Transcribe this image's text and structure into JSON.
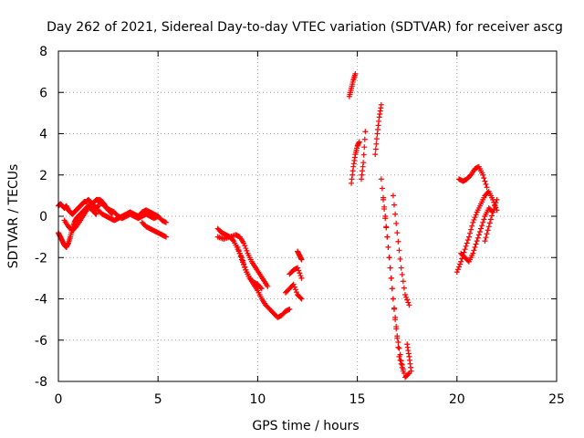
{
  "chart_data": {
    "type": "scatter",
    "title": "Day 262 of 2021, Sidereal Day-to-day VTEC variation (SDTVAR) for receiver ascg",
    "xlabel": "GPS time / hours",
    "ylabel": "SDTVAR / TECUs",
    "xlim": [
      0,
      25
    ],
    "ylim": [
      -8,
      8
    ],
    "xticks": [
      0,
      5,
      10,
      15,
      20,
      25
    ],
    "yticks": [
      -8,
      -6,
      -4,
      -2,
      0,
      2,
      4,
      6,
      8
    ],
    "xtick_labels": [
      "0",
      "5",
      "10",
      "15",
      "20",
      "25"
    ],
    "ytick_labels": [
      "-8",
      "-6",
      "-4",
      "-2",
      "0",
      "2",
      "4",
      "6",
      "8"
    ],
    "grid": true,
    "marker": "+",
    "marker_color": "#ff0000",
    "series": [
      {
        "name": "seg1",
        "x": [
          0.0,
          0.1,
          0.2,
          0.3,
          0.4,
          0.5,
          0.6,
          0.7,
          0.8,
          0.9,
          1.0,
          1.1,
          1.2,
          1.3,
          1.4,
          1.5,
          1.6,
          1.7,
          1.8,
          1.9,
          2.0
        ],
        "y": [
          0.5,
          0.6,
          0.5,
          0.4,
          0.5,
          0.3,
          0.2,
          0.1,
          0.2,
          0.3,
          0.4,
          0.5,
          0.6,
          0.7,
          0.7,
          0.8,
          0.7,
          0.6,
          0.5,
          0.4,
          0.5
        ]
      },
      {
        "name": "seg2",
        "x": [
          0.0,
          0.1,
          0.2,
          0.3,
          0.4,
          0.5,
          0.6,
          0.7,
          0.8,
          0.9,
          1.0,
          1.1,
          1.2,
          1.3,
          1.4,
          1.5,
          1.6,
          1.7,
          1.8,
          1.9
        ],
        "y": [
          -0.8,
          -1.0,
          -1.2,
          -1.4,
          -1.5,
          -1.3,
          -1.0,
          -0.6,
          -0.3,
          -0.1,
          0.0,
          0.1,
          0.2,
          0.3,
          0.4,
          0.5,
          0.4,
          0.3,
          0.2,
          0.1
        ]
      },
      {
        "name": "seg3",
        "x": [
          0.3,
          0.5,
          0.7,
          0.9,
          1.1,
          1.3,
          1.5,
          1.7,
          1.9,
          2.1,
          2.3,
          2.5,
          2.7
        ],
        "y": [
          -0.2,
          -0.5,
          -0.7,
          -0.5,
          -0.2,
          0.1,
          0.4,
          0.6,
          0.8,
          0.8,
          0.6,
          0.3,
          0.1
        ]
      },
      {
        "name": "seg4",
        "x": [
          2.0,
          2.2,
          2.4,
          2.6,
          2.8,
          3.0,
          3.2,
          3.4,
          3.6,
          3.8,
          4.0,
          4.2,
          4.4,
          4.6,
          4.8,
          5.0,
          5.2,
          5.4
        ],
        "y": [
          0.7,
          0.6,
          0.4,
          0.3,
          0.2,
          0.0,
          -0.1,
          0.0,
          0.1,
          0.0,
          -0.1,
          0.0,
          0.1,
          0.0,
          -0.1,
          0.0,
          -0.2,
          -0.3
        ]
      },
      {
        "name": "seg5",
        "x": [
          2.0,
          2.2,
          2.4,
          2.6,
          2.8,
          3.0,
          3.2,
          3.4,
          3.6,
          3.8,
          4.0,
          4.2,
          4.4,
          4.6,
          4.8,
          5.0
        ],
        "y": [
          0.3,
          0.1,
          0.0,
          -0.1,
          -0.2,
          -0.1,
          0.0,
          0.1,
          0.2,
          0.1,
          0.0,
          0.2,
          0.3,
          0.2,
          0.1,
          0.0
        ]
      },
      {
        "name": "seg6",
        "x": [
          4.2,
          4.4,
          4.6,
          4.8,
          5.0,
          5.2,
          5.4
        ],
        "y": [
          -0.3,
          -0.5,
          -0.6,
          -0.7,
          -0.8,
          -0.9,
          -1.0
        ]
      },
      {
        "name": "seg7",
        "x": [
          8.0,
          8.2,
          8.4,
          8.6,
          8.8,
          9.0,
          9.2,
          9.4,
          9.6,
          9.8,
          10.0,
          10.2,
          10.4,
          10.6,
          10.8,
          11.0,
          11.2,
          11.4,
          11.6
        ],
        "y": [
          -0.6,
          -0.8,
          -0.9,
          -1.0,
          -1.2,
          -1.6,
          -2.0,
          -2.6,
          -3.0,
          -3.3,
          -3.6,
          -4.0,
          -4.3,
          -4.5,
          -4.7,
          -4.9,
          -4.8,
          -4.6,
          -4.5
        ]
      },
      {
        "name": "seg8",
        "x": [
          8.0,
          8.3,
          8.6,
          8.9,
          9.1,
          9.3,
          9.5,
          9.7,
          9.9,
          10.1,
          10.3,
          10.5
        ],
        "y": [
          -1.0,
          -1.1,
          -1.0,
          -0.9,
          -1.0,
          -1.3,
          -1.8,
          -2.2,
          -2.5,
          -2.8,
          -3.1,
          -3.4
        ]
      },
      {
        "name": "seg9",
        "x": [
          9.0,
          9.2,
          9.4,
          9.6,
          9.8,
          10.0,
          10.2
        ],
        "y": [
          -1.5,
          -2.1,
          -2.6,
          -3.0,
          -3.2,
          -3.3,
          -3.5
        ]
      },
      {
        "name": "seg10",
        "x": [
          11.4,
          11.6,
          11.8,
          12.0,
          12.2
        ],
        "y": [
          -3.7,
          -3.5,
          -3.3,
          -3.8,
          -4.0
        ]
      },
      {
        "name": "seg11",
        "x": [
          11.6,
          11.8,
          12.0,
          12.2
        ],
        "y": [
          -2.8,
          -2.6,
          -2.5,
          -3.0
        ]
      },
      {
        "name": "seg12",
        "x": [
          12.0,
          12.1,
          12.2
        ],
        "y": [
          -1.7,
          -1.9,
          -2.1
        ]
      },
      {
        "name": "seg13",
        "x": [
          14.6,
          14.7,
          14.8,
          14.9
        ],
        "y": [
          5.8,
          6.2,
          6.6,
          6.9
        ]
      },
      {
        "name": "seg14",
        "x": [
          14.7,
          14.8,
          14.9,
          15.0,
          15.1
        ],
        "y": [
          1.6,
          2.4,
          3.0,
          3.4,
          3.6
        ]
      },
      {
        "name": "seg15",
        "x": [
          15.2,
          15.3,
          15.4
        ],
        "y": [
          1.8,
          2.6,
          4.1
        ]
      },
      {
        "name": "seg16",
        "x": [
          15.9,
          16.0,
          16.1,
          16.2
        ],
        "y": [
          3.0,
          4.0,
          4.8,
          5.4
        ]
      },
      {
        "name": "seg17",
        "x": [
          16.2,
          16.4,
          16.6,
          16.8,
          17.0,
          17.2,
          17.4,
          17.6
        ],
        "y": [
          1.8,
          0.0,
          -2.0,
          -4.0,
          -5.8,
          -7.0,
          -7.8,
          -7.6
        ]
      },
      {
        "name": "seg18",
        "x": [
          16.3,
          16.5,
          16.7,
          16.9,
          17.1,
          17.3
        ],
        "y": [
          0.8,
          -1.0,
          -3.0,
          -5.0,
          -6.8,
          -7.5
        ]
      },
      {
        "name": "seg19",
        "x": [
          16.8,
          17.0,
          17.2,
          17.4,
          17.6
        ],
        "y": [
          1.0,
          -0.8,
          -2.5,
          -3.8,
          -4.3
        ]
      },
      {
        "name": "seg20",
        "x": [
          17.5,
          17.6,
          17.7
        ],
        "y": [
          -6.2,
          -6.8,
          -7.5
        ]
      },
      {
        "name": "seg21",
        "x": [
          20.1,
          20.3,
          20.5,
          20.7,
          20.9,
          21.1,
          21.3,
          21.5
        ],
        "y": [
          1.8,
          1.7,
          1.8,
          2.0,
          2.3,
          2.4,
          2.0,
          1.4
        ]
      },
      {
        "name": "seg22",
        "x": [
          20.0,
          20.2,
          20.4,
          20.6,
          20.8,
          21.0,
          21.2,
          21.4,
          21.6,
          21.8,
          22.0
        ],
        "y": [
          -2.7,
          -2.2,
          -1.6,
          -1.0,
          -0.3,
          0.2,
          0.6,
          1.0,
          1.2,
          0.8,
          0.3
        ]
      },
      {
        "name": "seg23",
        "x": [
          20.2,
          20.4,
          20.6,
          20.8,
          21.0,
          21.2,
          21.4,
          21.6,
          21.8
        ],
        "y": [
          -1.8,
          -2.0,
          -2.2,
          -1.8,
          -1.2,
          -0.6,
          0.0,
          0.4,
          0.2
        ]
      },
      {
        "name": "seg24",
        "x": [
          21.4,
          21.6,
          21.8,
          22.0
        ],
        "y": [
          -1.2,
          -0.5,
          0.2,
          0.8
        ]
      }
    ]
  }
}
